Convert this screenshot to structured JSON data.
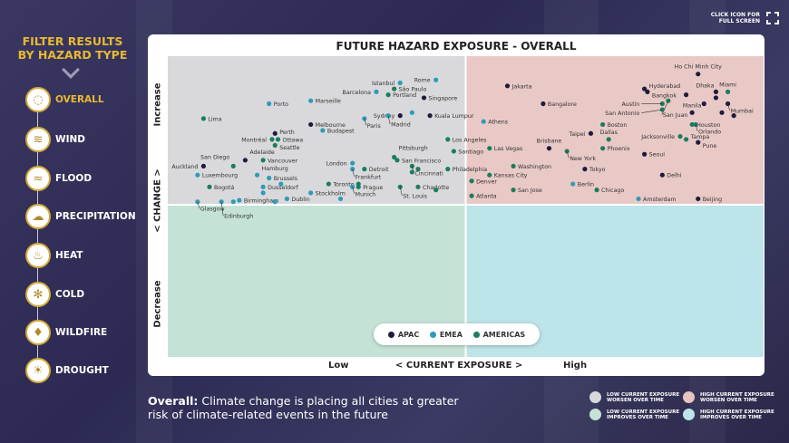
{
  "sidebar": {
    "title_line1": "FILTER RESULTS",
    "title_line2": "BY HAZARD TYPE",
    "items": [
      {
        "label": "OVERALL",
        "icon": "cycle-icon",
        "active": true
      },
      {
        "label": "WIND",
        "icon": "wind-icon"
      },
      {
        "label": "FLOOD",
        "icon": "flood-icon"
      },
      {
        "label": "PRECIPITATION",
        "icon": "rain-cloud-icon"
      },
      {
        "label": "HEAT",
        "icon": "heat-icon"
      },
      {
        "label": "COLD",
        "icon": "snowflake-icon"
      },
      {
        "label": "WILDFIRE",
        "icon": "flame-icon"
      },
      {
        "label": "DROUGHT",
        "icon": "sun-drought-icon"
      }
    ]
  },
  "fullscreen": {
    "line1": "CLICK ICON FOR",
    "line2": "FULL SCREEN",
    "icon": "fullscreen-icon"
  },
  "footer": {
    "bold": "Overall:",
    "text": " Climate change is placing all cities at greater risk of climate-related events in the future"
  },
  "quadrant_legend": [
    {
      "line1": "LOW CURRENT EXPOSURE",
      "line2": "WORSEN OVER TIME",
      "color": "#d9d9db"
    },
    {
      "line1": "HIGH CURRENT EXPOSURE",
      "line2": "WORSEN OVER TIME",
      "color": "#e9c3bd"
    },
    {
      "line1": "LOW CURRENT EXPOSURE",
      "line2": "IMPROVES OVER TIME",
      "color": "#c4e3d6"
    },
    {
      "line1": "HIGH CURRENT EXPOSURE",
      "line2": "IMPROVES OVER TIME",
      "color": "#bde4e9"
    }
  ],
  "chart_data": {
    "type": "scatter",
    "title": "FUTURE HAZARD EXPOSURE - OVERALL",
    "xlabel": "< CURRENT EXPOSURE >",
    "ylabel": "< CHANGE >",
    "x_ticks": [
      "Low",
      "High"
    ],
    "y_ticks": [
      "Increase",
      "Decrease"
    ],
    "xlim": [
      0,
      100
    ],
    "ylim": [
      0,
      100
    ],
    "grid": false,
    "legend_placement": "bottom-center",
    "quadrant_colors": {
      "low_increase": "#d9d9db",
      "high_increase": "#e9c9c6",
      "low_decrease": "#c4e3d6",
      "high_decrease": "#bde4e9"
    },
    "series": [
      {
        "name": "APAC",
        "color": "#1e1b3f"
      },
      {
        "name": "EMEA",
        "color": "#2f9bb8"
      },
      {
        "name": "AMERICAS",
        "color": "#1b7d5c"
      }
    ],
    "points": [
      {
        "label": "Rome",
        "region": "EMEA",
        "x": 45,
        "y": 92
      },
      {
        "label": "Istanbul",
        "region": "EMEA",
        "x": 39,
        "y": 91
      },
      {
        "label": "São Paulo",
        "region": "AMERICAS",
        "x": 38,
        "y": 89
      },
      {
        "label": "Barcelona",
        "region": "EMEA",
        "x": 35,
        "y": 88
      },
      {
        "label": "Portland",
        "region": "AMERICAS",
        "x": 37,
        "y": 87
      },
      {
        "label": "Singapore",
        "region": "APAC",
        "x": 43,
        "y": 86
      },
      {
        "label": "Porto",
        "region": "EMEA",
        "x": 17,
        "y": 84
      },
      {
        "label": "Marseille",
        "region": "EMEA",
        "x": 24,
        "y": 85
      },
      {
        "label": "Sydney",
        "region": "APAC",
        "x": 39,
        "y": 80
      },
      {
        "label": "Madrid",
        "region": "EMEA",
        "x": 37,
        "y": 80
      },
      {
        "region": "EMEA",
        "x": 41,
        "y": 81
      },
      {
        "label": "Kuala Lumpur",
        "region": "APAC",
        "x": 44,
        "y": 80
      },
      {
        "label": "Paris",
        "region": "EMEA",
        "x": 33,
        "y": 79
      },
      {
        "label": "Lima",
        "region": "AMERICAS",
        "x": 6,
        "y": 79
      },
      {
        "label": "Melbourne",
        "region": "APAC",
        "x": 24,
        "y": 77
      },
      {
        "label": "Budapest",
        "region": "EMEA",
        "x": 26,
        "y": 75
      },
      {
        "label": "Perth",
        "region": "APAC",
        "x": 18,
        "y": 74
      },
      {
        "label": "Ottawa",
        "region": "AMERICAS",
        "x": 18.5,
        "y": 72
      },
      {
        "label": "Montréal",
        "region": "AMERICAS",
        "x": 17.5,
        "y": 72
      },
      {
        "label": "Seattle",
        "region": "AMERICAS",
        "x": 18,
        "y": 70
      },
      {
        "label": "Los Angeles",
        "region": "AMERICAS",
        "x": 47,
        "y": 72
      },
      {
        "label": "Adelaide",
        "region": "APAC",
        "x": 13,
        "y": 65
      },
      {
        "label": "San Diego",
        "region": "AMERICAS",
        "x": 11,
        "y": 63
      },
      {
        "label": "Vancouver",
        "region": "AMERICAS",
        "x": 16,
        "y": 65
      },
      {
        "label": "Auckland",
        "region": "APAC",
        "x": 6,
        "y": 63
      },
      {
        "label": "Pittsburgh",
        "region": "AMERICAS",
        "x": 38,
        "y": 66
      },
      {
        "label": "London",
        "region": "EMEA",
        "x": 31,
        "y": 64
      },
      {
        "label": "San Francisco",
        "region": "AMERICAS",
        "x": 38.5,
        "y": 65
      },
      {
        "label": "Frankfurt",
        "region": "EMEA",
        "x": 31,
        "y": 62
      },
      {
        "label": "Detroit",
        "region": "AMERICAS",
        "x": 33,
        "y": 62
      },
      {
        "label": "Cincinnati",
        "region": "AMERICAS",
        "x": 41,
        "y": 63
      },
      {
        "region": "AMERICAS",
        "x": 42,
        "y": 62
      },
      {
        "region": "AMERICAS",
        "x": 41,
        "y": 61
      },
      {
        "label": "Luxembourg",
        "region": "EMEA",
        "x": 5,
        "y": 60
      },
      {
        "label": "Hamburg",
        "region": "EMEA",
        "x": 15,
        "y": 60
      },
      {
        "label": "Brussels",
        "region": "EMEA",
        "x": 17,
        "y": 59
      },
      {
        "label": "Santiago",
        "region": "AMERICAS",
        "x": 48,
        "y": 68
      },
      {
        "label": "Philadelphia",
        "region": "AMERICAS",
        "x": 47,
        "y": 62
      },
      {
        "label": "Toronto",
        "region": "AMERICAS",
        "x": 27,
        "y": 57
      },
      {
        "label": "Bogotá",
        "region": "AMERICAS",
        "x": 7,
        "y": 56
      },
      {
        "region": "AMERICAS",
        "x": 32,
        "y": 57
      },
      {
        "label": "Prague",
        "region": "AMERICAS",
        "x": 32,
        "y": 56
      },
      {
        "label": "Charlotte",
        "region": "AMERICAS",
        "x": 42,
        "y": 56
      },
      {
        "region": "AMERICAS",
        "x": 45,
        "y": 55
      },
      {
        "label": "St. Louis",
        "region": "AMERICAS",
        "x": 39,
        "y": 56
      },
      {
        "label": "Munich",
        "region": "EMEA",
        "x": 31,
        "y": 56
      },
      {
        "label": "Dusseldorf",
        "region": "EMEA",
        "x": 16,
        "y": 56
      },
      {
        "region": "EMEA",
        "x": 16,
        "y": 54
      },
      {
        "region": "EMEA",
        "x": 19,
        "y": 57
      },
      {
        "label": "Stockholm",
        "region": "EMEA",
        "x": 24,
        "y": 54
      },
      {
        "region": "EMEA",
        "x": 29,
        "y": 52
      },
      {
        "label": "Dublin",
        "region": "EMEA",
        "x": 20,
        "y": 52
      },
      {
        "label": "Birmingham",
        "region": "EMEA",
        "x": 12,
        "y": 51.5
      },
      {
        "region": "EMEA",
        "x": 11,
        "y": 51
      },
      {
        "region": "EMEA",
        "x": 18,
        "y": 51
      },
      {
        "label": "Glasgow",
        "region": "EMEA",
        "x": 5,
        "y": 51
      },
      {
        "label": "Edinburgh",
        "region": "EMEA",
        "x": 9,
        "y": 51
      },
      {
        "label": "Ho Chi Minh City",
        "region": "APAC",
        "x": 89,
        "y": 94
      },
      {
        "label": "Jakarta",
        "region": "APAC",
        "x": 57,
        "y": 90
      },
      {
        "label": "Hyderabad",
        "region": "APAC",
        "x": 80,
        "y": 89
      },
      {
        "label": "Bangkok",
        "region": "APAC",
        "x": 80.5,
        "y": 88
      },
      {
        "region": "APAC",
        "x": 87,
        "y": 87
      },
      {
        "label": "Dhaka",
        "region": "APAC",
        "x": 92,
        "y": 88
      },
      {
        "region": "APAC",
        "x": 92,
        "y": 86
      },
      {
        "label": "Miami",
        "region": "AMERICAS",
        "x": 94,
        "y": 88
      },
      {
        "label": "Bangalore",
        "region": "APAC",
        "x": 63,
        "y": 84
      },
      {
        "label": "Austin",
        "region": "AMERICAS",
        "x": 83,
        "y": 84
      },
      {
        "label": "San Juan",
        "region": "AMERICAS",
        "x": 84,
        "y": 85
      },
      {
        "label": "San Antonio",
        "region": "AMERICAS",
        "x": 83,
        "y": 82
      },
      {
        "region": "APAC",
        "x": 90,
        "y": 84
      },
      {
        "label": "Mumbai",
        "region": "APAC",
        "x": 94,
        "y": 84
      },
      {
        "region": "APAC",
        "x": 93,
        "y": 81
      },
      {
        "region": "APAC",
        "x": 95,
        "y": 80
      },
      {
        "label": "Manila",
        "region": "APAC",
        "x": 88,
        "y": 81
      },
      {
        "label": "Athens",
        "region": "EMEA",
        "x": 53,
        "y": 78
      },
      {
        "label": "Boston",
        "region": "AMERICAS",
        "x": 73,
        "y": 77
      },
      {
        "label": "Taipei",
        "region": "APAC",
        "x": 71,
        "y": 74
      },
      {
        "label": "Houston",
        "region": "AMERICAS",
        "x": 88,
        "y": 77
      },
      {
        "label": "Orlando",
        "region": "AMERICAS",
        "x": 88.6,
        "y": 77
      },
      {
        "label": "Dallas",
        "region": "AMERICAS",
        "x": 74,
        "y": 72
      },
      {
        "label": "Jacksonville",
        "region": "AMERICAS",
        "x": 86,
        "y": 73
      },
      {
        "label": "Tampa",
        "region": "AMERICAS",
        "x": 87,
        "y": 72
      },
      {
        "label": "Pune",
        "region": "APAC",
        "x": 89,
        "y": 71
      },
      {
        "label": "Brisbane",
        "region": "APAC",
        "x": 64,
        "y": 69
      },
      {
        "label": "New York",
        "region": "AMERICAS",
        "x": 67,
        "y": 68
      },
      {
        "label": "Phoenix",
        "region": "AMERICAS",
        "x": 73,
        "y": 69
      },
      {
        "label": "Las Vegas",
        "region": "AMERICAS",
        "x": 54,
        "y": 69
      },
      {
        "label": "Seoul",
        "region": "APAC",
        "x": 80,
        "y": 67
      },
      {
        "label": "Washington",
        "region": "AMERICAS",
        "x": 58,
        "y": 63
      },
      {
        "label": "Tokyo",
        "region": "APAC",
        "x": 70,
        "y": 62
      },
      {
        "label": "Kansas City",
        "region": "AMERICAS",
        "x": 54,
        "y": 60
      },
      {
        "label": "Delhi",
        "region": "APAC",
        "x": 83,
        "y": 60
      },
      {
        "label": "Denver",
        "region": "AMERICAS",
        "x": 51,
        "y": 58
      },
      {
        "label": "Berlin",
        "region": "EMEA",
        "x": 68,
        "y": 57
      },
      {
        "label": "San Jose",
        "region": "AMERICAS",
        "x": 58,
        "y": 55
      },
      {
        "label": "Chicago",
        "region": "AMERICAS",
        "x": 72,
        "y": 55
      },
      {
        "label": "Atlanta",
        "region": "AMERICAS",
        "x": 51,
        "y": 53
      },
      {
        "label": "Amsterdam",
        "region": "EMEA",
        "x": 79,
        "y": 52
      },
      {
        "label": "Beijing",
        "region": "APAC",
        "x": 89,
        "y": 52
      }
    ]
  }
}
